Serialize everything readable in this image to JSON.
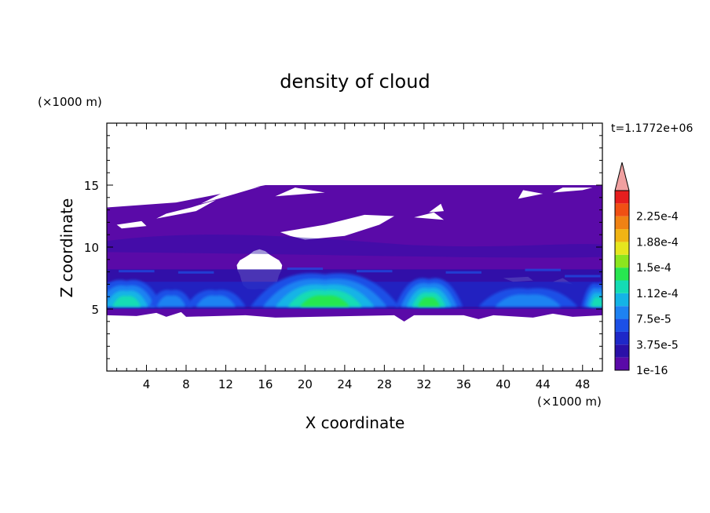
{
  "chart_data": {
    "type": "heatmap",
    "title": "density of cloud",
    "xlabel": "X coordinate",
    "ylabel": "Z coordinate",
    "x_unit": "(×1000 m)",
    "y_unit": "(×1000 m)",
    "time_label": "t=1.1772e+06",
    "xlim": [
      0,
      50
    ],
    "ylim": [
      0,
      20
    ],
    "x_ticks": [
      "4",
      "8",
      "12",
      "16",
      "20",
      "24",
      "28",
      "32",
      "36",
      "40",
      "44",
      "48"
    ],
    "y_ticks": [
      "5",
      "10",
      "15"
    ],
    "x_tick_values": [
      4,
      8,
      12,
      16,
      20,
      24,
      28,
      32,
      36,
      40,
      44,
      48
    ],
    "y_tick_values": [
      5,
      10,
      15
    ],
    "colorbar": {
      "labels": [
        "1e-16",
        "3.75e-5",
        "7.5e-5",
        "1.12e-4",
        "1.5e-4",
        "1.88e-4",
        "2.25e-4"
      ],
      "label_levels": [
        0,
        2,
        4,
        6,
        8,
        10,
        12
      ],
      "colors": [
        "#5a0aa8",
        "#2a10a8",
        "#1e28c8",
        "#1c50e6",
        "#1e82f2",
        "#14b4e6",
        "#14dcb4",
        "#28e650",
        "#8ce61e",
        "#e6e61e",
        "#f0b414",
        "#f08214",
        "#f05014",
        "#e61e1e"
      ],
      "overflow_color": "#f0a0a0"
    },
    "cloud_extent": {
      "z_bottom": 4.5,
      "z_top": 15,
      "dense_layer_z": [
        5,
        8
      ],
      "core_max_x": [
        6,
        22,
        32,
        49
      ]
    }
  }
}
